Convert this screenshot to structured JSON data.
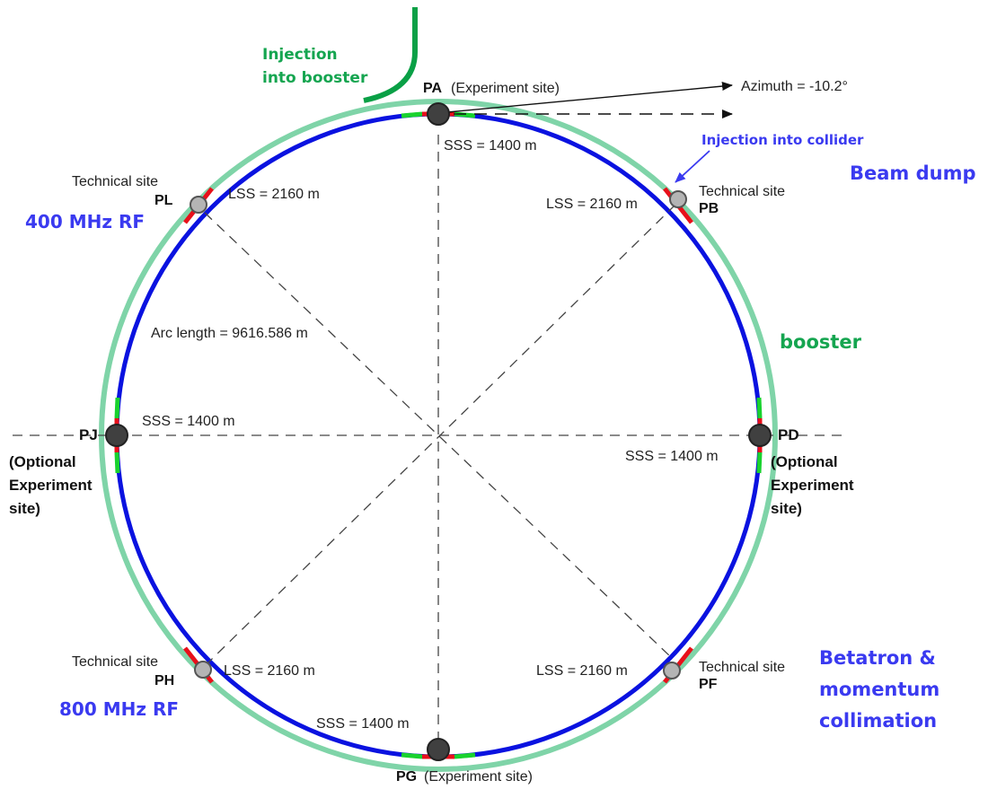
{
  "colors": {
    "booster": "#7fd4a8",
    "collider": "#0a12e0",
    "segment_red": "#e8101a",
    "segment_green": "#19d22e",
    "injection_green": "#0aa046",
    "label_blue": "#3a3af0",
    "label_green": "#15a550",
    "site_dark": "#404040",
    "site_light": "#b4b4b4"
  },
  "sites": {
    "pa": {
      "name": "PA",
      "desc": "(Experiment site)"
    },
    "pb": {
      "name": "PB",
      "desc": "Technical site"
    },
    "pd": {
      "name": "PD",
      "desc_lines": [
        "(Optional",
        "Experiment",
        "site)"
      ]
    },
    "pf": {
      "name": "PF",
      "desc": "Technical site"
    },
    "pg": {
      "name": "PG",
      "desc": "(Experiment site)"
    },
    "ph": {
      "name": "PH",
      "desc": "Technical site"
    },
    "pj": {
      "name": "PJ",
      "desc_lines": [
        "(Optional",
        "Experiment",
        "site)"
      ]
    },
    "pl": {
      "name": "PL",
      "desc": "Technical site"
    }
  },
  "measurements": {
    "sss_top": "SSS = 1400 m",
    "sss_left": "SSS = 1400 m",
    "sss_right": "SSS = 1400 m",
    "sss_bottom": "SSS = 1400 m",
    "lss_pl": "LSS = 2160 m",
    "lss_pb": "LSS = 2160 m",
    "lss_ph": "LSS = 2160 m",
    "lss_pf": "LSS = 2160 m",
    "arc_length": "Arc length = 9616.586 m",
    "azimuth": "Azimuth = -10.2°"
  },
  "annotations": {
    "injection_booster_lines": [
      "Injection",
      "into booster"
    ],
    "injection_collider": "Injection into collider",
    "beam_dump": "Beam dump",
    "booster": "booster",
    "rf_400": "400 MHz RF",
    "rf_800": "800 MHz RF",
    "collimation_lines": [
      "Betatron &",
      "momentum",
      "collimation"
    ]
  }
}
